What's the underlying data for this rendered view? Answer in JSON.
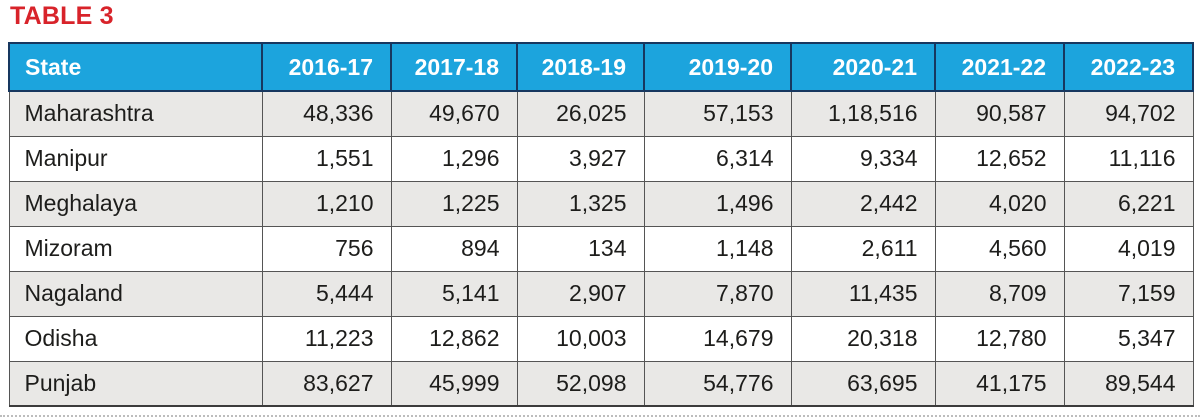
{
  "page": {
    "title": "TABLE 3"
  },
  "colors": {
    "title_red": "#d8232a",
    "header_bg": "#1ca4dd",
    "header_text": "#ffffff",
    "header_border": "#17375f",
    "row_alt_bg": "#e9e8e6",
    "row_bg": "#ffffff",
    "grid_border": "#555555",
    "cell_text": "#1d1d1b"
  },
  "chart_data": {
    "type": "table",
    "title": "TABLE 3",
    "columns": [
      "State",
      "2016-17",
      "2017-18",
      "2018-19",
      "2019-20",
      "2020-21",
      "2021-22",
      "2022-23"
    ],
    "rows": [
      {
        "state": "Maharashtra",
        "values": [
          "48,336",
          "49,670",
          "26,025",
          "57,153",
          "1,18,516",
          "90,587",
          "94,702"
        ]
      },
      {
        "state": "Manipur",
        "values": [
          "1,551",
          "1,296",
          "3,927",
          "6,314",
          "9,334",
          "12,652",
          "11,116"
        ]
      },
      {
        "state": "Meghalaya",
        "values": [
          "1,210",
          "1,225",
          "1,325",
          "1,496",
          "2,442",
          "4,020",
          "6,221"
        ]
      },
      {
        "state": "Mizoram",
        "values": [
          "756",
          "894",
          "134",
          "1,148",
          "2,611",
          "4,560",
          "4,019"
        ]
      },
      {
        "state": "Nagaland",
        "values": [
          "5,444",
          "5,141",
          "2,907",
          "7,870",
          "11,435",
          "8,709",
          "7,159"
        ]
      },
      {
        "state": "Odisha",
        "values": [
          "11,223",
          "12,862",
          "10,003",
          "14,679",
          "20,318",
          "12,780",
          "5,347"
        ]
      },
      {
        "state": "Punjab",
        "values": [
          "83,627",
          "45,999",
          "52,098",
          "54,776",
          "63,695",
          "41,175",
          "89,544"
        ]
      }
    ]
  }
}
